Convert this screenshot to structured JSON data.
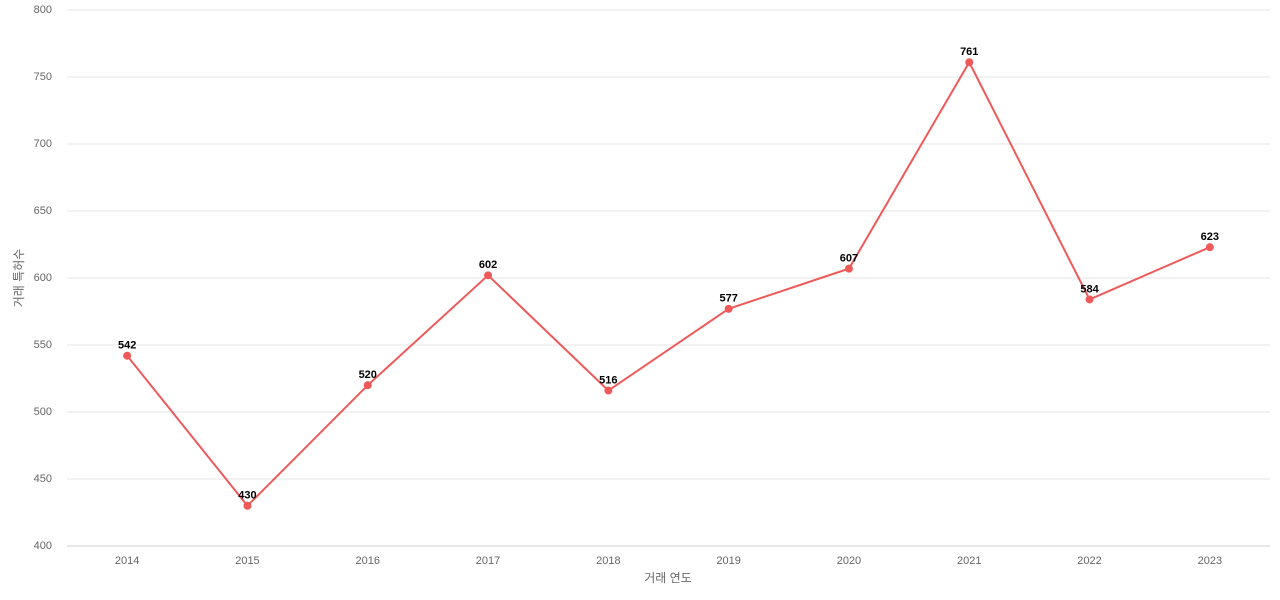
{
  "chart_data": {
    "type": "line",
    "x_label": "거래 연도",
    "y_label": "거래 특허수",
    "categories": [
      "2014",
      "2015",
      "2016",
      "2017",
      "2018",
      "2019",
      "2020",
      "2021",
      "2022",
      "2023"
    ],
    "series": [
      {
        "name": "거래 특허수",
        "color": "#ee5a5a",
        "values": [
          542,
          430,
          520,
          602,
          516,
          577,
          607,
          761,
          584,
          623
        ]
      }
    ],
    "ylim": [
      400,
      800
    ],
    "yticks": [
      400,
      450,
      500,
      550,
      600,
      650,
      700,
      750,
      800
    ],
    "grid": true,
    "legend": false
  }
}
